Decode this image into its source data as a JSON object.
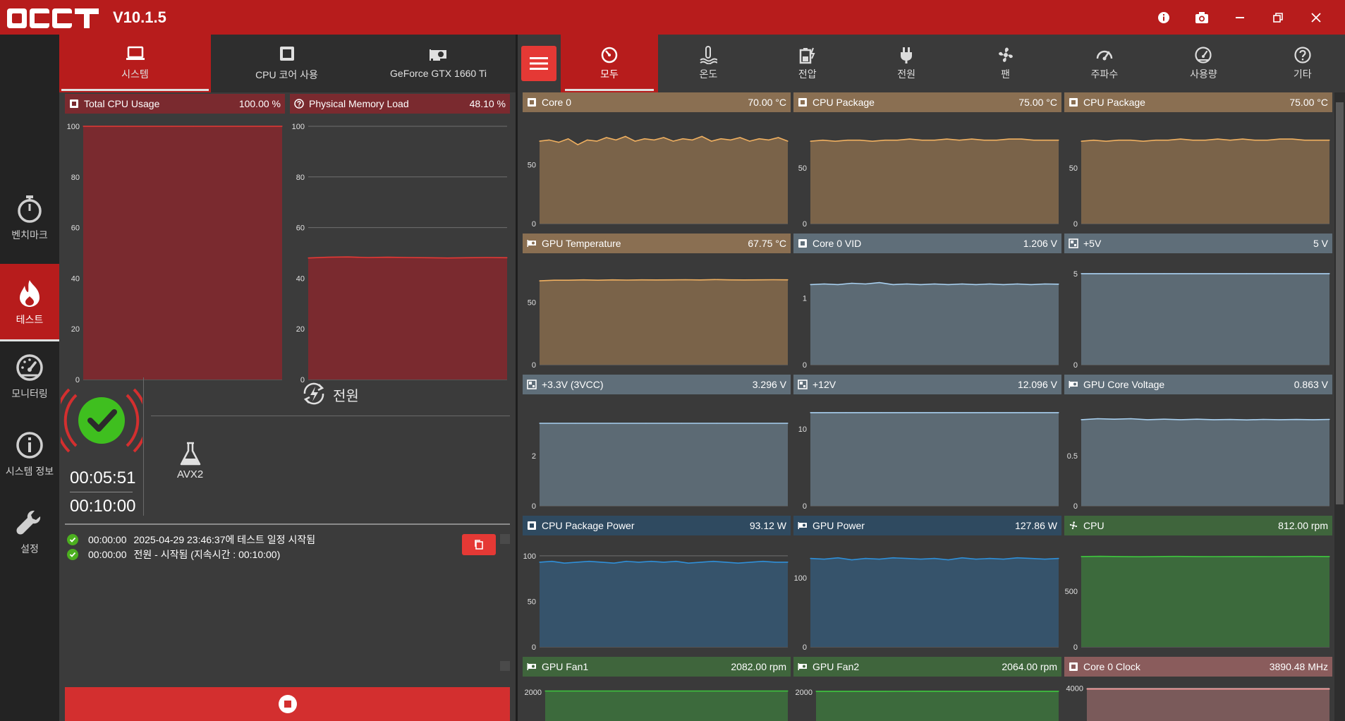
{
  "app": {
    "title": "OCCT",
    "version": "V10.1.5"
  },
  "colors": {
    "accent": "#b71c1c",
    "temperature": "#7a6349",
    "temperature_header": "#8a6f52",
    "temperature_line": "#f0b060",
    "voltage": "#5c6a74",
    "voltage_header": "#5f6e79",
    "voltage_line": "#a8d0f0",
    "power": "#36536b",
    "power_header": "#2f4a60",
    "power_line": "#2f8fd8",
    "fan": "#3c6a3c",
    "fan_header": "#3f653c",
    "fan_line": "#3ec73e",
    "clock": "#7a5a5a",
    "clock_header": "#8a5c5c",
    "clock_line": "#ff9f9f",
    "cpu_usage": "#7a2a2f",
    "cpu_usage_line": "#e53935"
  },
  "window_controls": [
    {
      "name": "info-icon"
    },
    {
      "name": "camera-icon"
    },
    {
      "name": "minimize-icon"
    },
    {
      "name": "restore-icon"
    },
    {
      "name": "close-icon"
    }
  ],
  "leftnav": [
    {
      "label": "벤치마크",
      "icon": "stopwatch-icon",
      "active": false
    },
    {
      "label": "테스트",
      "icon": "flame-icon",
      "active": true
    },
    {
      "label": "모니터링",
      "icon": "gauge-icon",
      "active": false
    },
    {
      "label": "시스템 정보",
      "icon": "info-circle-icon",
      "active": false
    },
    {
      "label": "설정",
      "icon": "wrench-icon",
      "active": false
    }
  ],
  "left_tabs": [
    {
      "label": "시스템",
      "icon": "laptop-icon",
      "active": true
    },
    {
      "label": "CPU 코어 사용",
      "icon": "cpu-chip-icon",
      "active": false
    },
    {
      "label": "GeForce GTX 1660 Ti",
      "icon": "gpu-card-icon",
      "active": false
    }
  ],
  "left_charts": [
    {
      "title": "Total CPU Usage",
      "value": "100.00 %",
      "icon": "cpu-chip-icon",
      "chart_data": {
        "type": "area",
        "ylim": [
          0,
          100
        ],
        "y_ticks": [
          "0",
          "20",
          "40",
          "60",
          "80",
          "100"
        ],
        "y": [
          100,
          100,
          100,
          100,
          100,
          100,
          100,
          100,
          100,
          100
        ]
      }
    },
    {
      "title": "Physical Memory Load",
      "value": "48.10 %",
      "icon": "question-circle-icon",
      "chart_data": {
        "type": "area",
        "ylim": [
          0,
          100
        ],
        "y_ticks": [
          "0",
          "20",
          "40",
          "60",
          "80",
          "100"
        ],
        "y": [
          48.0,
          48.3,
          48.4,
          48.2,
          48.3,
          48.2,
          48.1,
          48.0,
          48.1,
          48.2,
          48.1
        ]
      }
    }
  ],
  "test": {
    "name": "전원",
    "instruction_set": "AVX2",
    "elapsed": "00:05:51",
    "duration": "00:10:00"
  },
  "log": [
    {
      "time": "00:00:00",
      "message": "2025-04-29 23:46:37에 테스트 일정 시작됨"
    },
    {
      "time": "00:00:00",
      "message": "전원 - 시작됨 (지속시간 : 00:10:00)"
    }
  ],
  "right_tabs": [
    {
      "label": "모두",
      "icon": "dashboard-icon",
      "active": true
    },
    {
      "label": "온도",
      "icon": "thermometer-icon",
      "active": false
    },
    {
      "label": "전압",
      "icon": "battery-icon",
      "active": false
    },
    {
      "label": "전원",
      "icon": "plug-icon",
      "active": false
    },
    {
      "label": "팬",
      "icon": "fan-icon",
      "active": false
    },
    {
      "label": "주파수",
      "icon": "speedometer-icon",
      "active": false
    },
    {
      "label": "사용량",
      "icon": "gauge-icon",
      "active": false
    },
    {
      "label": "기타",
      "icon": "question-circle-icon",
      "active": false
    }
  ],
  "sensor_charts": [
    {
      "title": "Core 0",
      "value": "70.00 °C",
      "kind": "temperature",
      "icon": "cpu-chip-icon",
      "chart_data": {
        "type": "area",
        "ylim": [
          0,
          85
        ],
        "y_ticks": [
          {
            "v": 0,
            "l": "0"
          },
          {
            "v": 50,
            "l": "50"
          }
        ],
        "y": [
          70,
          71,
          69,
          72,
          67,
          71,
          70,
          73,
          71,
          74,
          70,
          72,
          71,
          73,
          70,
          72,
          71,
          74,
          70,
          72,
          71,
          73,
          70,
          72,
          71,
          73,
          70
        ]
      }
    },
    {
      "title": "CPU Package",
      "value": "75.00 °C",
      "kind": "temperature",
      "icon": "cpu-chip-icon",
      "chart_data": {
        "type": "area",
        "ylim": [
          0,
          90
        ],
        "y_ticks": [
          {
            "v": 0,
            "l": "0"
          },
          {
            "v": 50,
            "l": "50"
          }
        ],
        "y": [
          74,
          75,
          74,
          75,
          75,
          74,
          75,
          75,
          76,
          75,
          75,
          76,
          75,
          76,
          75,
          75,
          76,
          76,
          75,
          75,
          75
        ]
      }
    },
    {
      "title": "CPU Package",
      "value": "75.00 °C",
      "kind": "temperature",
      "icon": "cpu-chip-icon",
      "chart_data": {
        "type": "area",
        "ylim": [
          0,
          90
        ],
        "y_ticks": [
          {
            "v": 0,
            "l": "0"
          },
          {
            "v": 50,
            "l": "50"
          }
        ],
        "y": [
          74,
          75,
          74,
          75,
          75,
          74,
          75,
          75,
          76,
          75,
          75,
          76,
          75,
          76,
          75,
          75,
          76,
          76,
          75,
          75,
          75
        ]
      }
    },
    {
      "title": "GPU Temperature",
      "value": "67.75 °C",
      "kind": "temperature",
      "icon": "gpu-card-icon",
      "chart_data": {
        "type": "area",
        "ylim": [
          0,
          80
        ],
        "y_ticks": [
          {
            "v": 0,
            "l": "0"
          },
          {
            "v": 50,
            "l": "50"
          }
        ],
        "y": [
          67,
          67.5,
          67.5,
          67.8,
          67.5,
          67.8,
          67.6,
          67.8,
          67.7,
          67.8,
          67.9,
          67.7,
          68,
          67.8,
          67.7,
          67.8,
          67.9,
          67.8
        ]
      }
    },
    {
      "title": "Core 0 VID",
      "value": "1.206 V",
      "kind": "voltage",
      "icon": "cpu-chip-icon",
      "chart_data": {
        "type": "area",
        "ylim": [
          0,
          1.5
        ],
        "y_ticks": [
          {
            "v": 0,
            "l": "0"
          },
          {
            "v": 1,
            "l": "1"
          }
        ],
        "y": [
          1.2,
          1.21,
          1.2,
          1.22,
          1.21,
          1.23,
          1.2,
          1.21,
          1.2,
          1.21,
          1.2,
          1.21,
          1.2,
          1.21,
          1.2,
          1.21,
          1.2,
          1.21,
          1.206
        ]
      }
    },
    {
      "title": "+5V",
      "value": "5 V",
      "kind": "voltage",
      "icon": "motherboard-icon",
      "chart_data": {
        "type": "area",
        "ylim": [
          0,
          5.5
        ],
        "y_ticks": [
          {
            "v": 0,
            "l": "0"
          },
          {
            "v": 5,
            "l": "5"
          }
        ],
        "y": [
          5,
          5,
          5,
          5,
          5,
          5,
          5,
          5,
          5,
          5
        ]
      }
    },
    {
      "title": "+3.3V (3VCC)",
      "value": "3.296 V",
      "kind": "voltage",
      "icon": "motherboard-icon",
      "chart_data": {
        "type": "area",
        "ylim": [
          0,
          4
        ],
        "y_ticks": [
          {
            "v": 0,
            "l": "0"
          },
          {
            "v": 2,
            "l": "2"
          }
        ],
        "y": [
          3.296,
          3.296,
          3.296,
          3.296,
          3.296,
          3.296,
          3.296,
          3.296
        ]
      }
    },
    {
      "title": "+12V",
      "value": "12.096 V",
      "kind": "voltage",
      "icon": "motherboard-icon",
      "chart_data": {
        "type": "area",
        "ylim": [
          0,
          13
        ],
        "y_ticks": [
          {
            "v": 0,
            "l": "0"
          },
          {
            "v": 10,
            "l": "10"
          }
        ],
        "y": [
          12.096,
          12.096,
          12.096,
          12.096,
          12.096,
          12.096,
          12.096,
          12.096
        ]
      }
    },
    {
      "title": "GPU Core Voltage",
      "value": "0.863 V",
      "kind": "voltage",
      "icon": "gpu-card-icon",
      "chart_data": {
        "type": "area",
        "ylim": [
          0,
          1.0
        ],
        "y_ticks": [
          {
            "v": 0,
            "l": "0"
          },
          {
            "v": 0.5,
            "l": "0.5"
          }
        ],
        "y": [
          0.86,
          0.87,
          0.865,
          0.87,
          0.86,
          0.865,
          0.86,
          0.865,
          0.86,
          0.862,
          0.858,
          0.863,
          0.86,
          0.862,
          0.86,
          0.863
        ]
      }
    },
    {
      "title": "CPU Package Power",
      "value": "93.12 W",
      "kind": "power",
      "icon": "cpu-chip-icon",
      "chart_data": {
        "type": "area",
        "ylim": [
          0,
          110
        ],
        "y_ticks": [
          {
            "v": 0,
            "l": "0"
          },
          {
            "v": 50,
            "l": "50"
          },
          {
            "v": 100,
            "l": "100"
          }
        ],
        "y": [
          93,
          94,
          92,
          93,
          94,
          93,
          92,
          94,
          93,
          94,
          93,
          94,
          92,
          93,
          94,
          93,
          92,
          93,
          94,
          93,
          93
        ]
      }
    },
    {
      "title": "GPU Power",
      "value": "127.86 W",
      "kind": "power",
      "icon": "gpu-card-icon",
      "chart_data": {
        "type": "area",
        "ylim": [
          0,
          145
        ],
        "y_ticks": [
          {
            "v": 0,
            "l": "0"
          },
          {
            "v": 100,
            "l": "100"
          }
        ],
        "y": [
          128,
          127,
          129,
          126,
          128,
          127,
          129,
          128,
          127,
          128,
          126,
          129,
          127,
          128,
          127,
          129,
          128,
          127,
          128
        ]
      }
    },
    {
      "title": "CPU",
      "value": "812.00 rpm",
      "kind": "fan",
      "icon": "fan-icon",
      "chart_data": {
        "type": "area",
        "ylim": [
          0,
          900
        ],
        "y_ticks": [
          {
            "v": 0,
            "l": "0"
          },
          {
            "v": 500,
            "l": "500"
          }
        ],
        "y": [
          812,
          814,
          812,
          810,
          812,
          813,
          812,
          811,
          812,
          812,
          811,
          812,
          813,
          812
        ]
      }
    },
    {
      "title": "GPU Fan1",
      "value": "2082.00 rpm",
      "kind": "fan",
      "icon": "gpu-card-icon",
      "chart_data": {
        "type": "area",
        "ylim": [
          0,
          2400
        ],
        "y_ticks": [
          {
            "v": 2000,
            "l": "2000"
          }
        ],
        "y": [
          2080,
          2082,
          2081,
          2083,
          2082,
          2082,
          2081,
          2082
        ]
      }
    },
    {
      "title": "GPU Fan2",
      "value": "2064.00 rpm",
      "kind": "fan",
      "icon": "gpu-card-icon",
      "chart_data": {
        "type": "area",
        "ylim": [
          0,
          2400
        ],
        "y_ticks": [
          {
            "v": 2000,
            "l": "2000"
          }
        ],
        "y": [
          2062,
          2064,
          2063,
          2065,
          2064,
          2064,
          2063,
          2064
        ]
      }
    },
    {
      "title": "Core 0 Clock",
      "value": "3890.48 MHz",
      "kind": "clock",
      "icon": "cpu-chip-icon",
      "chart_data": {
        "type": "area",
        "ylim": [
          0,
          4200
        ],
        "y_ticks": [
          {
            "v": 4000,
            "l": "4000"
          }
        ],
        "y": [
          3890,
          3890,
          3890,
          3890,
          3890,
          3890,
          3890
        ]
      }
    }
  ]
}
